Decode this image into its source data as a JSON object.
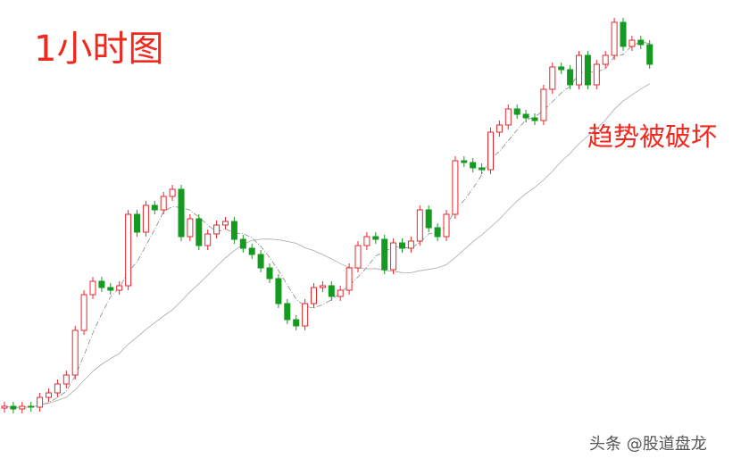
{
  "title": "1小时图",
  "annotation": "趋势被破坏",
  "watermark": "头条 @股道盘龙",
  "chart_data": {
    "type": "candlestick",
    "up_color": "#e8262b",
    "down_color": "#149a1e",
    "ylim": [
      0,
      523
    ],
    "open": [
      66,
      68,
      65,
      68,
      67,
      78,
      83,
      93,
      103,
      153,
      193,
      208,
      201,
      198,
      203,
      283,
      263,
      293,
      288,
      303,
      311,
      258,
      278,
      248,
      261,
      271,
      275,
      255,
      245,
      238,
      223,
      211,
      183,
      165,
      158,
      183,
      201,
      203,
      191,
      198,
      223,
      248,
      258,
      255,
      221,
      251,
      245,
      253,
      288,
      268,
      258,
      283,
      343,
      341,
      335,
      333,
      375,
      383,
      401,
      395,
      391,
      388,
      423,
      448,
      445,
      428,
      461,
      428,
      451,
      461,
      498,
      471,
      478,
      473
    ],
    "high": [
      73,
      73,
      73,
      73,
      83,
      88,
      98,
      108,
      158,
      198,
      213,
      213,
      206,
      208,
      288,
      288,
      298,
      298,
      308,
      316,
      316,
      283,
      283,
      266,
      276,
      280,
      280,
      260,
      250,
      243,
      228,
      216,
      188,
      170,
      188,
      206,
      208,
      208,
      203,
      228,
      253,
      263,
      263,
      260,
      256,
      256,
      258,
      293,
      293,
      273,
      288,
      348,
      348,
      346,
      340,
      380,
      388,
      406,
      406,
      400,
      396,
      428,
      453,
      453,
      450,
      466,
      466,
      456,
      466,
      503,
      503,
      483,
      483,
      478
    ],
    "low": [
      61,
      60,
      60,
      62,
      62,
      73,
      78,
      88,
      98,
      148,
      188,
      196,
      193,
      193,
      198,
      258,
      258,
      283,
      283,
      298,
      253,
      253,
      243,
      243,
      256,
      266,
      250,
      240,
      233,
      218,
      206,
      178,
      160,
      153,
      153,
      178,
      196,
      186,
      186,
      193,
      218,
      243,
      250,
      216,
      216,
      240,
      240,
      248,
      263,
      253,
      253,
      278,
      336,
      330,
      328,
      328,
      370,
      378,
      390,
      386,
      383,
      383,
      418,
      440,
      423,
      423,
      423,
      423,
      446,
      456,
      466,
      466,
      468,
      446
    ],
    "close": [
      68,
      65,
      68,
      67,
      78,
      83,
      93,
      103,
      153,
      193,
      208,
      201,
      198,
      203,
      283,
      263,
      293,
      288,
      303,
      311,
      258,
      278,
      248,
      261,
      271,
      275,
      255,
      245,
      238,
      223,
      211,
      183,
      165,
      158,
      183,
      201,
      203,
      191,
      198,
      223,
      248,
      258,
      255,
      221,
      251,
      245,
      253,
      288,
      268,
      258,
      283,
      343,
      341,
      335,
      333,
      375,
      383,
      401,
      395,
      391,
      388,
      423,
      448,
      445,
      428,
      461,
      428,
      451,
      461,
      498,
      471,
      478,
      473,
      451
    ]
  }
}
